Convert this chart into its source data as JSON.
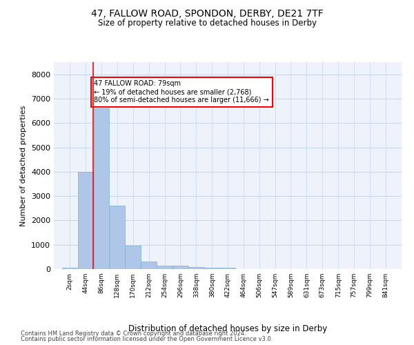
{
  "title": "47, FALLOW ROAD, SPONDON, DERBY, DE21 7TF",
  "subtitle": "Size of property relative to detached houses in Derby",
  "xlabel": "Distribution of detached houses by size in Derby",
  "ylabel": "Number of detached properties",
  "bar_color": "#aec6e8",
  "bar_edge_color": "#7ab0d4",
  "background_color": "#eef2fb",
  "grid_color": "#c8d4ee",
  "annotation_text": "47 FALLOW ROAD: 79sqm\n← 19% of detached houses are smaller (2,768)\n80% of semi-detached houses are larger (11,666) →",
  "red_line_x": 86,
  "categories": [
    "2sqm",
    "44sqm",
    "86sqm",
    "128sqm",
    "170sqm",
    "212sqm",
    "254sqm",
    "296sqm",
    "338sqm",
    "380sqm",
    "422sqm",
    "464sqm",
    "506sqm",
    "547sqm",
    "589sqm",
    "631sqm",
    "673sqm",
    "715sqm",
    "757sqm",
    "799sqm",
    "841sqm"
  ],
  "bin_edges": [
    2,
    44,
    86,
    128,
    170,
    212,
    254,
    296,
    338,
    380,
    422,
    464,
    506,
    547,
    589,
    631,
    673,
    715,
    757,
    799,
    841
  ],
  "values": [
    70,
    4000,
    6600,
    2620,
    960,
    320,
    130,
    130,
    80,
    60,
    50,
    0,
    0,
    0,
    0,
    0,
    0,
    0,
    0,
    0,
    0
  ],
  "ylim": [
    0,
    8500
  ],
  "yticks": [
    0,
    1000,
    2000,
    3000,
    4000,
    5000,
    6000,
    7000,
    8000
  ],
  "footer_line1": "Contains HM Land Registry data © Crown copyright and database right 2024.",
  "footer_line2": "Contains public sector information licensed under the Open Government Licence v3.0."
}
